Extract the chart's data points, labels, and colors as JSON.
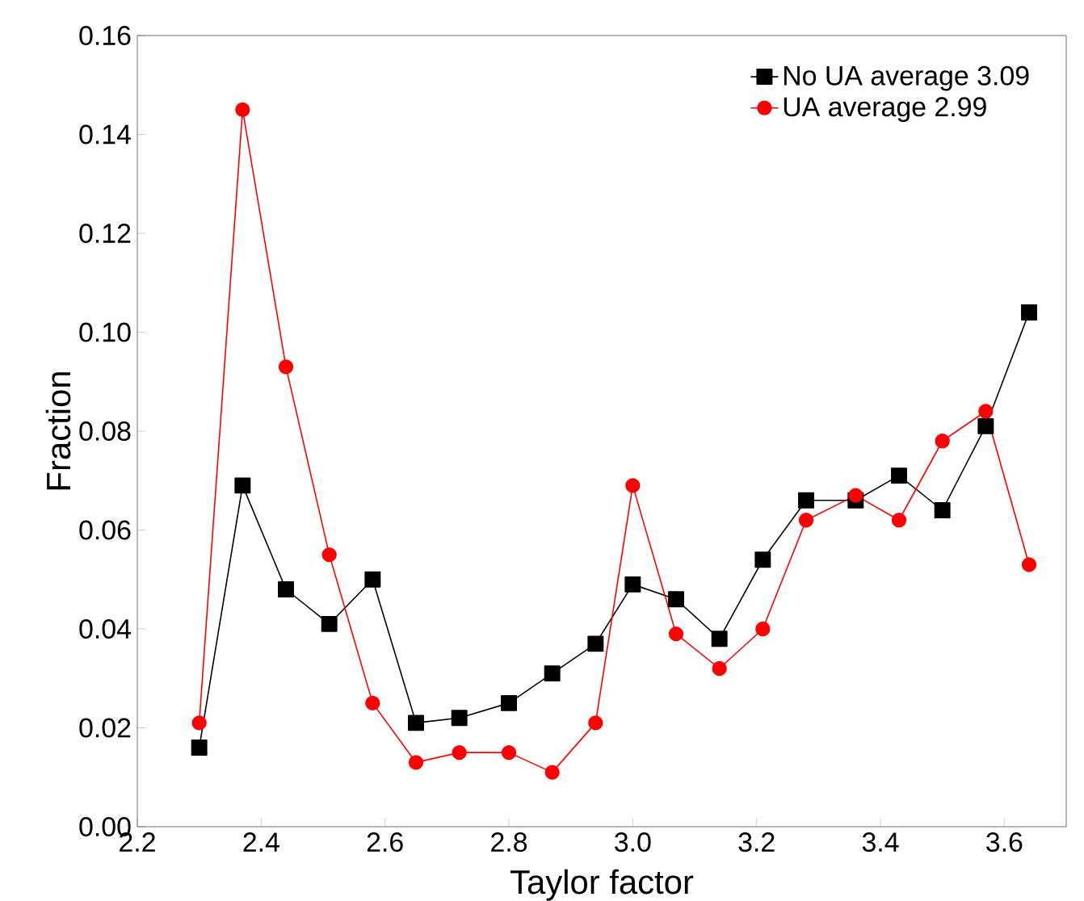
{
  "chart_data": {
    "type": "line",
    "xlabel": "Taylor factor",
    "ylabel": "Fraction",
    "xlim": [
      2.2,
      3.7
    ],
    "ylim": [
      0,
      0.16
    ],
    "xticks": [
      2.2,
      2.4,
      2.6,
      2.8,
      {
        "value": 3,
        "label": "3.0"
      },
      3.2,
      3.4,
      3.6
    ],
    "yticks": [
      {
        "value": 0,
        "label": "0.00"
      },
      0.02,
      0.04,
      0.06,
      0.08,
      {
        "value": 0.1,
        "label": "0.10"
      },
      0.12,
      0.14,
      0.16
    ],
    "legend": "top right",
    "grid": false,
    "series": [
      {
        "name": "No UA average 3.09",
        "color": "#000000",
        "marker": "square",
        "x": [
          2.3,
          2.37,
          2.44,
          2.51,
          2.58,
          2.65,
          2.72,
          2.8,
          2.87,
          2.94,
          3.0,
          3.07,
          3.14,
          3.21,
          3.28,
          3.36,
          3.43,
          3.5,
          3.57,
          3.64
        ],
        "values": [
          0.016,
          0.069,
          0.048,
          0.041,
          0.05,
          0.021,
          0.022,
          0.025,
          0.031,
          0.037,
          0.049,
          0.046,
          0.038,
          0.054,
          0.066,
          0.066,
          0.071,
          0.064,
          0.081,
          0.104
        ]
      },
      {
        "name": "UA       average 2.99",
        "color": "#ff0000",
        "marker": "circle",
        "x": [
          2.3,
          2.37,
          2.44,
          2.51,
          2.58,
          2.65,
          2.72,
          2.8,
          2.87,
          2.94,
          3.0,
          3.07,
          3.14,
          3.21,
          3.28,
          3.36,
          3.43,
          3.5,
          3.57,
          3.64
        ],
        "values": [
          0.021,
          0.145,
          0.093,
          0.055,
          0.025,
          0.013,
          0.015,
          0.015,
          0.011,
          0.021,
          0.069,
          0.039,
          0.032,
          0.04,
          0.062,
          0.067,
          0.062,
          0.078,
          0.084,
          0.053
        ]
      }
    ]
  }
}
